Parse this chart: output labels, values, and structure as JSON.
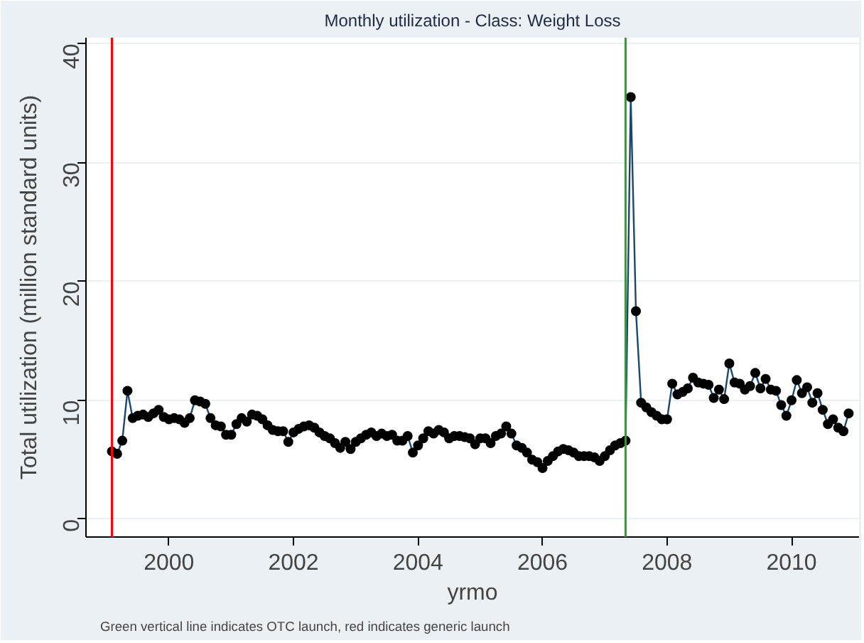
{
  "chart_data": {
    "type": "line",
    "title": "Monthly utilization - Class: Weight Loss",
    "xlabel": "yrmo",
    "ylabel": "Total utilization (million standard units)",
    "annotations": [
      "Green vertical line indicates OTC launch, red indicates generic launch"
    ],
    "x": [
      "1999-02",
      "1999-03",
      "1999-04",
      "1999-05",
      "1999-06",
      "1999-07",
      "1999-08",
      "1999-09",
      "1999-10",
      "1999-11",
      "1999-12",
      "2000-01",
      "2000-02",
      "2000-03",
      "2000-04",
      "2000-05",
      "2000-06",
      "2000-07",
      "2000-08",
      "2000-09",
      "2000-10",
      "2000-11",
      "2000-12",
      "2001-01",
      "2001-02",
      "2001-03",
      "2001-04",
      "2001-05",
      "2001-06",
      "2001-07",
      "2001-08",
      "2001-09",
      "2001-10",
      "2001-11",
      "2001-12",
      "2002-01",
      "2002-02",
      "2002-03",
      "2002-04",
      "2002-05",
      "2002-06",
      "2002-07",
      "2002-08",
      "2002-09",
      "2002-10",
      "2002-11",
      "2002-12",
      "2003-01",
      "2003-02",
      "2003-03",
      "2003-04",
      "2003-05",
      "2003-06",
      "2003-07",
      "2003-08",
      "2003-09",
      "2003-10",
      "2003-11",
      "2003-12",
      "2004-01",
      "2004-02",
      "2004-03",
      "2004-04",
      "2004-05",
      "2004-06",
      "2004-07",
      "2004-08",
      "2004-09",
      "2004-10",
      "2004-11",
      "2004-12",
      "2005-01",
      "2005-02",
      "2005-03",
      "2005-04",
      "2005-05",
      "2005-06",
      "2005-07",
      "2005-08",
      "2005-09",
      "2005-10",
      "2005-11",
      "2005-12",
      "2006-01",
      "2006-02",
      "2006-03",
      "2006-04",
      "2006-05",
      "2006-06",
      "2006-07",
      "2006-08",
      "2006-09",
      "2006-10",
      "2006-11",
      "2006-12",
      "2007-01",
      "2007-02",
      "2007-03",
      "2007-04",
      "2007-05",
      "2007-06",
      "2007-07",
      "2007-08",
      "2007-09",
      "2007-10",
      "2007-11",
      "2007-12",
      "2008-01",
      "2008-02",
      "2008-03",
      "2008-04",
      "2008-05",
      "2008-06",
      "2008-07",
      "2008-08",
      "2008-09",
      "2008-10",
      "2008-11",
      "2008-12",
      "2009-01",
      "2009-02",
      "2009-03",
      "2009-04",
      "2009-05",
      "2009-06",
      "2009-07",
      "2009-08",
      "2009-09",
      "2009-10",
      "2009-11",
      "2009-12",
      "2010-01",
      "2010-02",
      "2010-03",
      "2010-04",
      "2010-05",
      "2010-06",
      "2010-07",
      "2010-08",
      "2010-09",
      "2010-10",
      "2010-11",
      "2010-12"
    ],
    "series": [
      {
        "color": "#1a476f",
        "values": [
          5.7,
          5.5,
          6.6,
          10.8,
          8.5,
          8.7,
          8.8,
          8.6,
          8.9,
          9.2,
          8.6,
          8.4,
          8.5,
          8.4,
          8.1,
          8.5,
          10.0,
          9.9,
          9.7,
          8.5,
          7.9,
          7.8,
          7.1,
          7.1,
          8.0,
          8.5,
          8.2,
          8.8,
          8.7,
          8.4,
          7.9,
          7.5,
          7.4,
          7.4,
          6.5,
          7.3,
          7.6,
          7.8,
          7.9,
          7.7,
          7.3,
          7.0,
          6.8,
          6.4,
          6.0,
          6.5,
          5.9,
          6.5,
          6.8,
          7.1,
          7.3,
          7.0,
          7.2,
          7.0,
          7.1,
          6.6,
          6.6,
          7.0,
          5.6,
          6.2,
          6.8,
          7.4,
          7.2,
          7.5,
          7.3,
          6.8,
          7.0,
          7.0,
          6.9,
          6.8,
          6.3,
          6.8,
          6.8,
          6.4,
          7.0,
          7.2,
          7.8,
          7.2,
          6.2,
          6.0,
          5.6,
          5.0,
          4.8,
          4.3,
          4.9,
          5.3,
          5.7,
          5.9,
          5.8,
          5.6,
          5.3,
          5.3,
          5.3,
          5.2,
          4.9,
          5.3,
          5.8,
          6.2,
          6.4,
          6.6,
          35.5,
          17.5,
          9.8,
          9.4,
          9.0,
          8.7,
          8.4,
          8.4,
          11.4,
          10.5,
          10.7,
          11.0,
          11.9,
          11.5,
          11.4,
          11.3,
          10.2,
          10.9,
          10.1,
          13.1,
          11.5,
          11.4,
          10.9,
          11.2,
          12.3,
          11.0,
          11.8,
          10.9,
          10.8,
          9.6,
          8.7,
          10.0,
          11.7,
          10.6,
          11.1,
          9.8,
          10.6,
          9.2,
          8.0,
          8.4,
          7.7,
          7.4,
          8.9
        ]
      }
    ],
    "marker": "circle",
    "xlim": [
      "1998-09",
      "2011-02"
    ],
    "xticks": [
      {
        "value": "2000-01",
        "label": "2000"
      },
      {
        "value": "2002-01",
        "label": "2002"
      },
      {
        "value": "2004-01",
        "label": "2004"
      },
      {
        "value": "2006-01",
        "label": "2006"
      },
      {
        "value": "2008-01",
        "label": "2008"
      },
      {
        "value": "2010-01",
        "label": "2010"
      }
    ],
    "ylim": [
      -1.5,
      40.5
    ],
    "yticks": [
      0,
      10,
      20,
      30,
      40
    ],
    "grid": "y",
    "ref_lines": [
      {
        "axis": "x",
        "value": "1999-02",
        "color": "#ff0000"
      },
      {
        "axis": "x",
        "value": "2007-05",
        "color": "#2ca02c"
      }
    ]
  }
}
